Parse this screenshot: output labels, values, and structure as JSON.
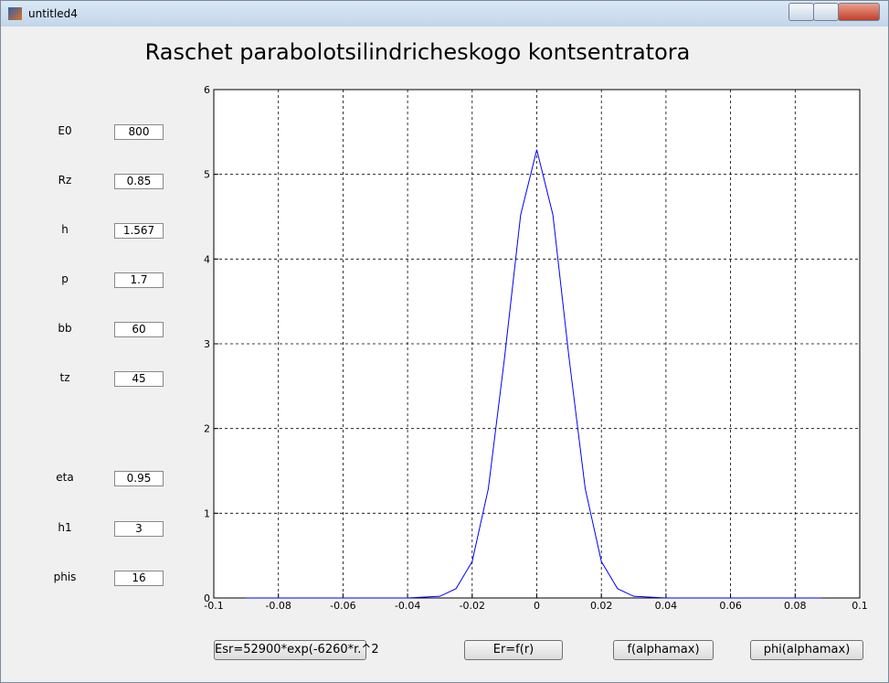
{
  "window": {
    "title": "untitled4"
  },
  "title": "Raschet  parabolotsilindricheskogo kontsentratora",
  "params": [
    {
      "label": "E0",
      "value": "800"
    },
    {
      "label": "Rz",
      "value": "0.85"
    },
    {
      "label": "h",
      "value": "1.567"
    },
    {
      "label": "p",
      "value": "1.7"
    },
    {
      "label": "bb",
      "value": "60"
    },
    {
      "label": "tz",
      "value": "45"
    },
    {
      "label": "eta",
      "value": "0.95"
    },
    {
      "label": "h1",
      "value": "3"
    },
    {
      "label": "phis",
      "value": "16"
    }
  ],
  "buttons": [
    "Esr=52900*exp(-6260*r.^2",
    "Er=f(r)",
    "f(alphamax)",
    "phi(alphamax)"
  ],
  "chart_data": {
    "type": "line",
    "x": [
      -0.09,
      -0.06,
      -0.04,
      -0.03,
      -0.025,
      -0.02,
      -0.015,
      -0.01,
      -0.005,
      0,
      0.005,
      0.01,
      0.015,
      0.02,
      0.025,
      0.03,
      0.04,
      0.06,
      0.088
    ],
    "series": [
      {
        "name": "Esr",
        "color": "#0000ff",
        "values": [
          0,
          0,
          0,
          0.02,
          0.11,
          0.43,
          1.29,
          2.83,
          4.52,
          5.29,
          4.52,
          2.83,
          1.29,
          0.43,
          0.11,
          0.02,
          0,
          0,
          0
        ]
      }
    ],
    "xlim": [
      -0.1,
      0.1
    ],
    "ylim": [
      0,
      6
    ],
    "xticks": [
      -0.1,
      -0.08,
      -0.06,
      -0.04,
      -0.02,
      0,
      0.02,
      0.04,
      0.06,
      0.08,
      0.1
    ],
    "yticks": [
      0,
      1,
      2,
      3,
      4,
      5,
      6
    ],
    "grid": true
  }
}
